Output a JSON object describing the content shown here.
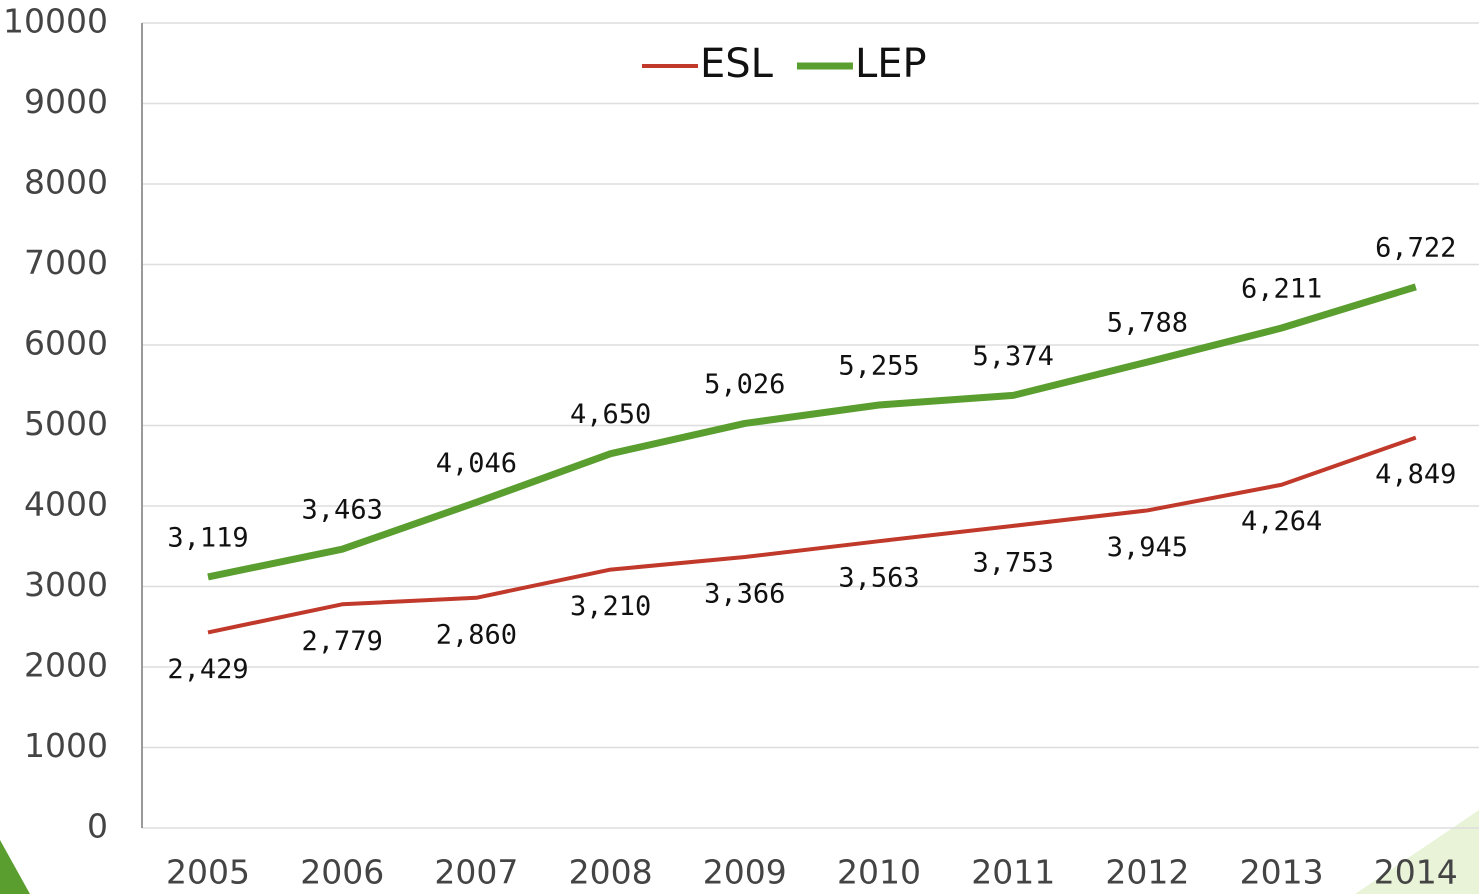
{
  "chart_data": {
    "type": "line",
    "categories": [
      "2005",
      "2006",
      "2007",
      "2008",
      "2009",
      "2010",
      "2011",
      "2012",
      "2013",
      "2014"
    ],
    "series": [
      {
        "name": "ESL",
        "color": "#c0392b",
        "values": [
          2429,
          2779,
          2860,
          3210,
          3366,
          3563,
          3753,
          3945,
          4264,
          4849
        ],
        "value_labels": [
          "2,429",
          "2,779",
          "2,860",
          "3,210",
          "3,366",
          "3,563",
          "3,753",
          "3,945",
          "4,264",
          "4,849"
        ]
      },
      {
        "name": "LEP",
        "color": "#5a9e2f",
        "values": [
          3119,
          3463,
          4046,
          4650,
          5026,
          5255,
          5374,
          5788,
          6211,
          6722
        ],
        "value_labels": [
          "3,119",
          "3,463",
          "4,046",
          "4,650",
          "5,026",
          "5,255",
          "5,374",
          "5,788",
          "6,211",
          "6,722"
        ]
      }
    ],
    "ylim": [
      0,
      10000
    ],
    "yticks": [
      0,
      1000,
      2000,
      3000,
      4000,
      5000,
      6000,
      7000,
      8000,
      9000,
      10000
    ],
    "grid": true,
    "legend": "top"
  }
}
